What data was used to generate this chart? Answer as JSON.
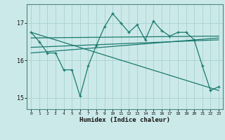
{
  "xlabel": "Humidex (Indice chaleur)",
  "bg_color": "#cce9e9",
  "line_color": "#1a7a6e",
  "grid_color": "#add4d4",
  "xlim": [
    -0.5,
    23.5
  ],
  "ylim": [
    14.7,
    17.5
  ],
  "yticks": [
    15,
    16,
    17
  ],
  "xticks": [
    0,
    1,
    2,
    3,
    4,
    5,
    6,
    7,
    8,
    9,
    10,
    11,
    12,
    13,
    14,
    15,
    16,
    17,
    18,
    19,
    20,
    21,
    22,
    23
  ],
  "series1": [
    16.75,
    16.5,
    16.2,
    16.2,
    15.75,
    15.75,
    15.05,
    15.85,
    16.4,
    16.9,
    17.25,
    17.0,
    16.75,
    16.95,
    16.55,
    17.05,
    16.8,
    16.65,
    16.75,
    16.75,
    16.55,
    15.85,
    15.2,
    15.3
  ],
  "series2_x": [
    0,
    23
  ],
  "series2_y": [
    16.75,
    15.2
  ],
  "series3_x": [
    0,
    23
  ],
  "series3_y": [
    16.6,
    16.65
  ],
  "series4_x": [
    0,
    23
  ],
  "series4_y": [
    16.2,
    16.6
  ],
  "series5_x": [
    0,
    23
  ],
  "series5_y": [
    16.35,
    16.55
  ]
}
